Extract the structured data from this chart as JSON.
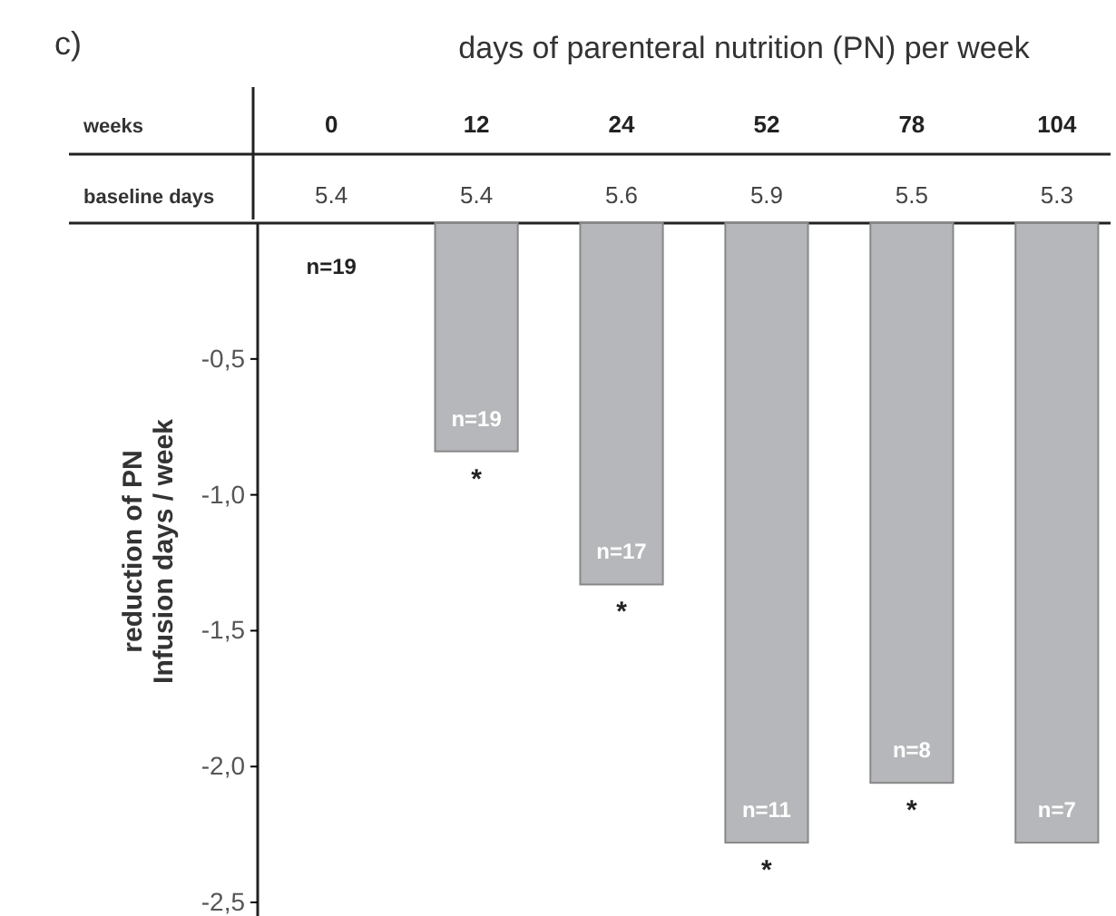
{
  "chart_data": {
    "type": "bar",
    "title": "days of parenteral nutrition (PN) per week",
    "xlabel": "weeks",
    "ylabel": "reduction of PN\nInfusion days / week",
    "categories": [
      "0",
      "12",
      "24",
      "52",
      "78",
      "104"
    ],
    "values": [
      0,
      -0.84,
      -1.33,
      -2.28,
      -2.06,
      -2.28
    ],
    "color": "#b5b7ba",
    "ylim": [
      -2.55,
      0
    ],
    "yticks": [
      {
        "value": -0.5,
        "label": "-0,5"
      },
      {
        "value": -1,
        "label": "-1,0"
      },
      {
        "value": -1.5,
        "label": "-1,5"
      },
      {
        "value": -2,
        "label": "-2,0"
      },
      {
        "value": -2.5,
        "label": "-2,5"
      }
    ],
    "grid": false,
    "annotations": [
      "c)",
      "baseline days",
      "5.4",
      "5.4",
      "5.6",
      "5.9",
      "5.5",
      "5.3",
      "n=19",
      {
        "text": "n=19",
        "x": "12",
        "y": -0.84
      },
      {
        "text": "n=17",
        "x": "24",
        "y": -1.33
      },
      {
        "text": "n=11",
        "x": "52",
        "y": -2.28
      },
      {
        "text": "n=8",
        "x": "78",
        "y": -2.06
      },
      {
        "text": "n=7",
        "x": "104",
        "y": -2.28
      },
      {
        "text": "*",
        "x": "12",
        "y": -0.84
      },
      {
        "text": "*",
        "x": "24",
        "y": -1.33
      },
      {
        "text": "*",
        "x": "52",
        "y": -2.28
      },
      {
        "text": "*",
        "x": "78",
        "y": -2.06
      }
    ]
  }
}
